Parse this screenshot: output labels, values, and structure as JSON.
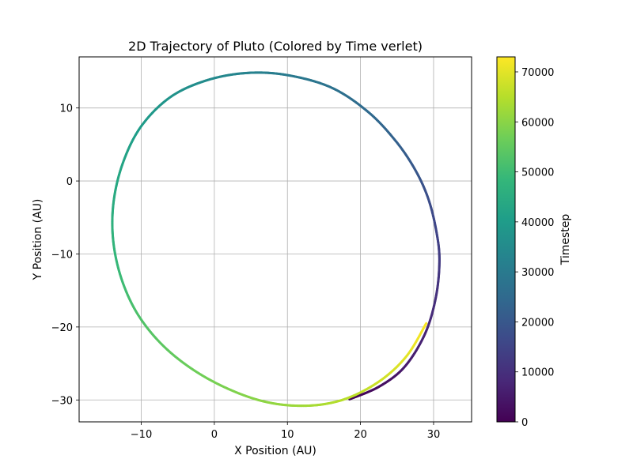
{
  "chart_data": {
    "type": "scatter",
    "title": "2D Trajectory of Pluto (Colored by Time verlet)",
    "xlabel": "X Position (AU)",
    "ylabel": "Y Position (AU)",
    "xlim": [
      -18.5,
      35.2
    ],
    "ylim": [
      -33,
      17
    ],
    "xticks": [
      -10,
      0,
      10,
      20,
      30
    ],
    "yticks": [
      -30,
      -20,
      -10,
      0,
      10
    ],
    "xtick_labels": [
      "−10",
      "0",
      "10",
      "20",
      "30"
    ],
    "ytick_labels": [
      "−30",
      "−20",
      "−10",
      "0",
      "10"
    ],
    "grid": true,
    "colormap": "viridis",
    "colorbar": {
      "label": "Timestep",
      "range": [
        0,
        73000
      ],
      "ticks": [
        0,
        10000,
        20000,
        30000,
        40000,
        50000,
        60000,
        70000
      ],
      "tick_labels": [
        "0",
        "10000",
        "20000",
        "30000",
        "40000",
        "50000",
        "60000",
        "70000"
      ]
    },
    "colormap_stops": [
      "#440154",
      "#482878",
      "#3e4989",
      "#31688e",
      "#26828e",
      "#1f9e89",
      "#35b779",
      "#6ece58",
      "#b5de2b",
      "#fde725"
    ],
    "trajectory": {
      "color_variable": "timestep",
      "points": [
        {
          "t": 0,
          "x": 18.5,
          "y": -29.9
        },
        {
          "t": 2500,
          "x": 22.5,
          "y": -28.2
        },
        {
          "t": 5000,
          "x": 26.0,
          "y": -25.5
        },
        {
          "t": 7500,
          "x": 28.8,
          "y": -21.0
        },
        {
          "t": 10000,
          "x": 30.3,
          "y": -16.0
        },
        {
          "t": 12500,
          "x": 30.8,
          "y": -11.0
        },
        {
          "t": 15000,
          "x": 30.4,
          "y": -7.0
        },
        {
          "t": 17500,
          "x": 29.3,
          "y": -2.5
        },
        {
          "t": 20000,
          "x": 27.5,
          "y": 1.5
        },
        {
          "t": 22500,
          "x": 24.8,
          "y": 5.5
        },
        {
          "t": 25000,
          "x": 21.0,
          "y": 9.5
        },
        {
          "t": 27500,
          "x": 16.0,
          "y": 12.8
        },
        {
          "t": 30000,
          "x": 10.0,
          "y": 14.5
        },
        {
          "t": 32500,
          "x": 4.5,
          "y": 14.8
        },
        {
          "t": 35000,
          "x": -1.0,
          "y": 13.8
        },
        {
          "t": 37500,
          "x": -6.0,
          "y": 11.5
        },
        {
          "t": 40000,
          "x": -10.0,
          "y": 7.5
        },
        {
          "t": 42500,
          "x": -12.5,
          "y": 2.5
        },
        {
          "t": 45000,
          "x": -13.8,
          "y": -3.0
        },
        {
          "t": 47500,
          "x": -13.8,
          "y": -8.5
        },
        {
          "t": 50000,
          "x": -12.5,
          "y": -14.0
        },
        {
          "t": 52500,
          "x": -10.0,
          "y": -19.0
        },
        {
          "t": 55000,
          "x": -6.0,
          "y": -23.5
        },
        {
          "t": 57500,
          "x": -0.5,
          "y": -27.3
        },
        {
          "t": 60000,
          "x": 6.0,
          "y": -30.0
        },
        {
          "t": 62500,
          "x": 12.0,
          "y": -30.8
        },
        {
          "t": 65000,
          "x": 17.5,
          "y": -30.0
        },
        {
          "t": 67500,
          "x": 22.5,
          "y": -27.5
        },
        {
          "t": 70000,
          "x": 26.3,
          "y": -24.0
        },
        {
          "t": 73000,
          "x": 29.0,
          "y": -19.5
        }
      ]
    }
  }
}
